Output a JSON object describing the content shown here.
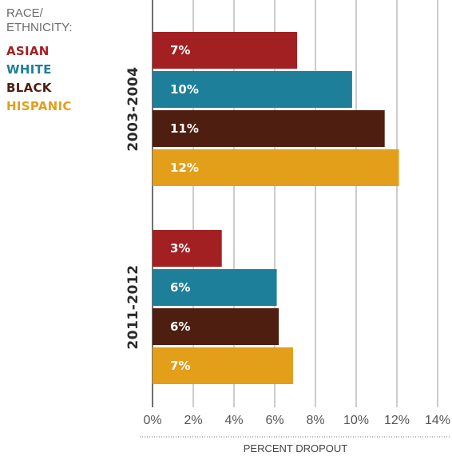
{
  "legend": {
    "heading": "RACE/\nETHNICITY:",
    "items": [
      {
        "label": "ASIAN",
        "color": "#A32022"
      },
      {
        "label": "WHITE",
        "color": "#1E7F9A"
      },
      {
        "label": "BLACK",
        "color": "#4E1E10"
      },
      {
        "label": "HISPANIC",
        "color": "#E39E1A"
      }
    ]
  },
  "chart_data": {
    "type": "bar",
    "orientation": "horizontal",
    "xlabel": "PERCENT DROPOUT",
    "xlim": [
      0,
      14
    ],
    "ticks": [
      0,
      2,
      4,
      6,
      8,
      10,
      12,
      14
    ],
    "tick_labels": [
      "0%",
      "2%",
      "4%",
      "6%",
      "8%",
      "10%",
      "12%",
      "14%"
    ],
    "grid": true,
    "groups": [
      {
        "label": "2003-2004",
        "bars": [
          {
            "category": "ASIAN",
            "value": 7.1,
            "label": "7%",
            "color": "#A32022"
          },
          {
            "category": "WHITE",
            "value": 9.8,
            "label": "10%",
            "color": "#1E7F9A"
          },
          {
            "category": "BLACK",
            "value": 11.4,
            "label": "11%",
            "color": "#4E1E10"
          },
          {
            "category": "HISPANIC",
            "value": 12.1,
            "label": "12%",
            "color": "#E39E1A"
          }
        ]
      },
      {
        "label": "2011-2012",
        "bars": [
          {
            "category": "ASIAN",
            "value": 3.4,
            "label": "3%",
            "color": "#A32022"
          },
          {
            "category": "WHITE",
            "value": 6.1,
            "label": "6%",
            "color": "#1E7F9A"
          },
          {
            "category": "BLACK",
            "value": 6.2,
            "label": "6%",
            "color": "#4E1E10"
          },
          {
            "category": "HISPANIC",
            "value": 6.9,
            "label": "7%",
            "color": "#E39E1A"
          }
        ]
      }
    ]
  }
}
